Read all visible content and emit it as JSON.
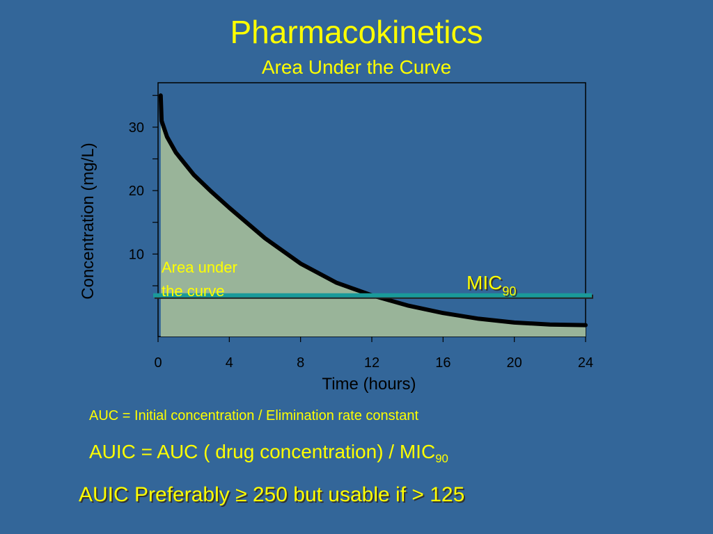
{
  "slide": {
    "title": "Pharmacokinetics",
    "subtitle": "Area Under the Curve",
    "formula_auc": "AUC = Initial concentration / Elimination rate constant",
    "formula_auic_prefix": "AUIC = AUC ( drug concentration) / MIC",
    "formula_auic_sub": "90",
    "note": "AUIC Preferably  ≥ 250 but usable if > 125"
  },
  "chart_data": {
    "type": "area",
    "title": "",
    "xlabel": "Time (hours)",
    "ylabel": "Concentration (mg/L)",
    "xlim": [
      0,
      24
    ],
    "ylim": [
      -3,
      37
    ],
    "x_ticks": [
      0,
      4,
      8,
      12,
      16,
      20,
      24
    ],
    "y_ticks": [
      10,
      20,
      30
    ],
    "series": [
      {
        "points": [
          [
            0.15,
            35
          ],
          [
            0.2,
            31
          ],
          [
            0.5,
            28.5
          ],
          [
            1,
            26
          ],
          [
            2,
            22.5
          ],
          [
            3,
            19.8
          ],
          [
            4,
            17.3
          ],
          [
            6,
            12.5
          ],
          [
            8,
            8.5
          ],
          [
            10,
            5.5
          ],
          [
            12,
            3.5
          ],
          [
            14,
            1.9
          ],
          [
            16,
            0.7
          ],
          [
            18,
            -0.2
          ],
          [
            20,
            -0.8
          ],
          [
            22,
            -1.1
          ],
          [
            24,
            -1.2
          ]
        ]
      }
    ],
    "mic_line": {
      "label": "MIC",
      "label_sub": "90",
      "y": 3.5
    },
    "area_annotation": [
      "Area under",
      "the curve"
    ],
    "colors": {
      "background": "#336699",
      "plot_background": "#336699",
      "area_fill": "#99b499",
      "curve": "#000000",
      "mic_line": "#1a9a9a",
      "text": "#ffff00",
      "axis": "#000000"
    }
  }
}
